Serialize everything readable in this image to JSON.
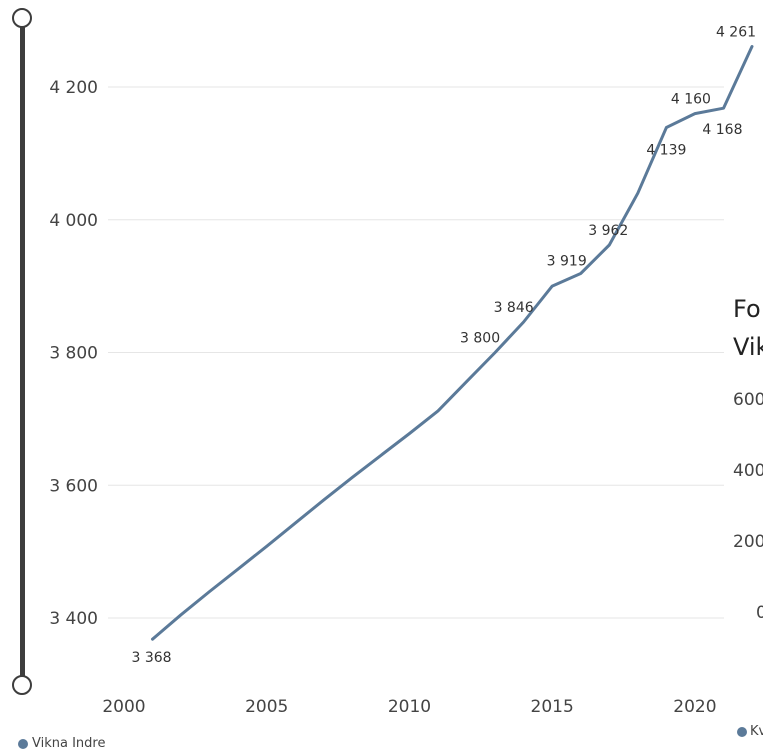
{
  "chart_data": {
    "type": "line",
    "x": [
      2001,
      2002,
      2003,
      2004,
      2005,
      2006,
      2007,
      2008,
      2009,
      2010,
      2011,
      2012,
      2013,
      2014,
      2015,
      2016,
      2017,
      2018,
      2019,
      2020,
      2021,
      2022
    ],
    "series": [
      {
        "name": "Vikna Indre",
        "color": "#5b7a99",
        "values": [
          3368,
          3405,
          3440,
          3474,
          3508,
          3543,
          3578,
          3612,
          3645,
          3678,
          3712,
          3756,
          3800,
          3846,
          3900,
          3919,
          3962,
          4040,
          4139,
          4160,
          4168,
          4261
        ]
      }
    ],
    "data_labels": [
      {
        "x": 2001,
        "text": "3 368"
      },
      {
        "x": 2013,
        "text": "3 800"
      },
      {
        "x": 2014,
        "text": "3 846"
      },
      {
        "x": 2016,
        "text": "3 919"
      },
      {
        "x": 2017,
        "text": "3 962"
      },
      {
        "x": 2019,
        "text": "4 139"
      },
      {
        "x": 2020,
        "text": "4 160"
      },
      {
        "x": 2021,
        "text": "4 168"
      },
      {
        "x": 2022,
        "text": "4 261"
      }
    ],
    "y_ticks": [
      3400,
      3600,
      3800,
      4000,
      4200
    ],
    "y_tick_labels": [
      "3 400",
      "3 600",
      "3 800",
      "4 000",
      "4 200"
    ],
    "x_ticks": [
      2000,
      2005,
      2010,
      2015,
      2020
    ],
    "x_tick_labels": [
      "2000",
      "2005",
      "2010",
      "2015",
      "2020"
    ],
    "xlim": [
      2000,
      2022
    ],
    "ylim": [
      3300,
      4300
    ],
    "grid": true,
    "legend_position": "bottom-left"
  },
  "legend": {
    "label": "Vikna Indre",
    "color": "#5b7a99"
  },
  "overlay": {
    "title_line1": "Fo",
    "title_line2": "Vik",
    "ticks": [
      "600",
      "400",
      "200",
      "0"
    ],
    "legend_label": "Kv",
    "legend_color": "#5b7a99"
  }
}
